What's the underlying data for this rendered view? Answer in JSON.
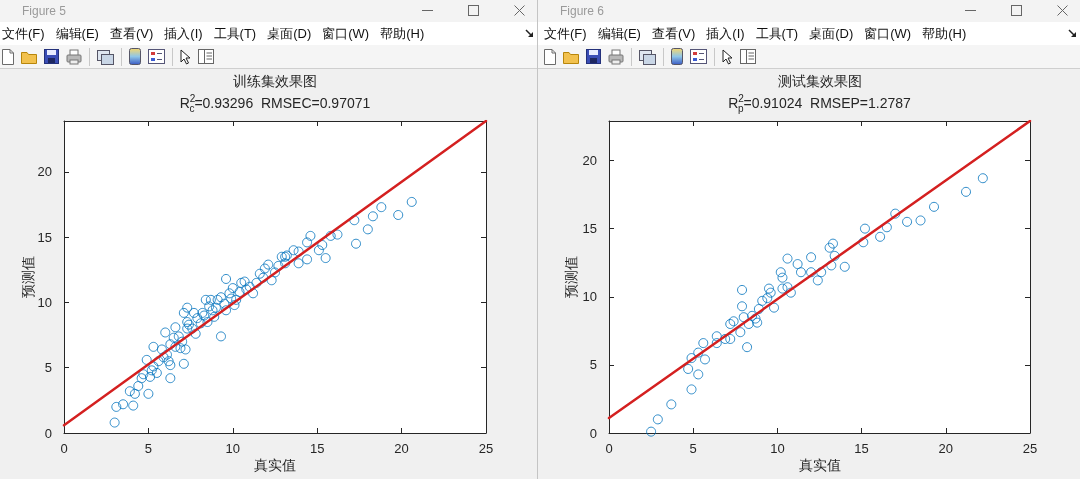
{
  "chart_data": [
    {
      "type": "scatter",
      "title": "训练集效果图",
      "subtitle": "R$^{2}$$_{c}$=0.93296  RMSEC=0.97071",
      "xlabel": "真实值",
      "ylabel": "预测值",
      "annotations": [
        "Figure 5",
        "文件(F)",
        "编辑(E)",
        "查看(V)",
        "插入(I)",
        "工具(T)",
        "桌面(D)",
        "窗口(W)",
        "帮助(H)"
      ],
      "xlim": [
        0,
        25
      ],
      "xticks": [
        0,
        5,
        10,
        15,
        20,
        25
      ],
      "ylim": [
        0,
        23.9
      ],
      "yticks": [
        0,
        5,
        10,
        15,
        20
      ],
      "series": [
        {
          "type": "scatter",
          "color": "#0072bd",
          "marker": "circle",
          "x": [
            3.0,
            3.1,
            3.5,
            4.1,
            3.9,
            4.2,
            4.4,
            5.0,
            4.6,
            5.1,
            6.3,
            4.9,
            5.3,
            5.3,
            5.8,
            6.3,
            7.1,
            6.0,
            6.5,
            6.9,
            7.2,
            7.3,
            7.1,
            7.3,
            7.7,
            7.8,
            8.4,
            8.2,
            8.6,
            8.5,
            9.3,
            9.1,
            9.3,
            9.6,
            9.8,
            9.6,
            10.2,
            10.5,
            10.8,
            11.2,
            11.6,
            12.1,
            12.3,
            13.1,
            13.9,
            14.4,
            14.6,
            14.4,
            15.1,
            15.3,
            15.5,
            15.8,
            16.2,
            17.2,
            17.3,
            18.0,
            18.3,
            18.8,
            19.8,
            20.6,
            13.6,
            13.2,
            13.9,
            13.1,
            5.5,
            5.6,
            5.9,
            6.1,
            6.3,
            6.6,
            6.2,
            6.8,
            7.0,
            6.6,
            7.4,
            7.6,
            7.9,
            8.1,
            8.3,
            8.8,
            8.9,
            9.0,
            9.5,
            9.9,
            10.0,
            10.4,
            10.7,
            11.0,
            11.4,
            11.8,
            12.5,
            12.7,
            4.7,
            5.2,
            7.3,
            8.7,
            10.1,
            11.9,
            12.9
          ],
          "values": [
            0.8,
            2.0,
            2.2,
            2.1,
            3.2,
            3.0,
            3.6,
            3.0,
            4.2,
            4.3,
            4.2,
            5.6,
            5.1,
            6.6,
            6.4,
            5.2,
            5.3,
            7.7,
            7.3,
            6.5,
            6.4,
            8.0,
            9.2,
            9.6,
            9.2,
            7.6,
            10.2,
            9.2,
            9.7,
            8.5,
            7.4,
            10.2,
            10.4,
            11.8,
            10.7,
            9.4,
            10.2,
            11.5,
            11.0,
            10.7,
            12.2,
            12.9,
            11.7,
            13.5,
            13.0,
            13.3,
            15.1,
            14.6,
            14.0,
            14.4,
            13.4,
            15.1,
            15.2,
            16.3,
            14.5,
            15.6,
            16.6,
            17.3,
            16.7,
            17.7,
            14.0,
            13.6,
            13.9,
            13.0,
            4.6,
            5.5,
            5.8,
            6.0,
            6.8,
            6.6,
            5.5,
            7.4,
            7.0,
            8.1,
            8.3,
            8.0,
            8.8,
            8.4,
            9.0,
            9.4,
            8.9,
            9.6,
            9.9,
            10.3,
            11.1,
            10.8,
            11.6,
            11.2,
            11.5,
            11.9,
            12.3,
            12.8,
            4.5,
            4.8,
            8.5,
            10.2,
            9.8,
            12.6,
            13.5
          ]
        },
        {
          "type": "line",
          "color": "#d42020",
          "marker": "none",
          "line_style": "solid",
          "x": [
            0,
            25
          ],
          "values": [
            0.6,
            23.9
          ]
        }
      ]
    },
    {
      "type": "scatter",
      "title": "测试集效果图",
      "subtitle": "R$^{2}$$_{p}$=0.91024  RMSEP=1.2787",
      "xlabel": "真实值",
      "ylabel": "预测值",
      "annotations": [
        "Figure 6",
        "文件(F)",
        "编辑(E)",
        "查看(V)",
        "插入(I)",
        "工具(T)",
        "桌面(D)",
        "窗口(W)",
        "帮助(H)"
      ],
      "xlim": [
        0,
        25
      ],
      "xticks": [
        0,
        5,
        10,
        15,
        20,
        25
      ],
      "ylim": [
        0,
        22.9
      ],
      "yticks": [
        0,
        5,
        10,
        15,
        20
      ],
      "series": [
        {
          "type": "scatter",
          "color": "#0072bd",
          "marker": "circle",
          "x": [
            2.5,
            2.9,
            3.7,
            4.9,
            4.7,
            5.3,
            4.9,
            5.7,
            5.3,
            5.6,
            6.4,
            6.4,
            6.9,
            7.2,
            7.8,
            8.2,
            7.2,
            7.4,
            7.9,
            7.9,
            8.0,
            8.3,
            8.5,
            8.8,
            8.7,
            8.9,
            9.1,
            9.4,
            9.5,
            9.6,
            9.8,
            10.2,
            10.3,
            10.3,
            10.6,
            10.6,
            10.8,
            11.2,
            11.4,
            12.0,
            12.0,
            12.4,
            12.6,
            13.1,
            13.3,
            13.4,
            13.2,
            14.0,
            15.2,
            15.1,
            16.1,
            16.5,
            17.0,
            17.7,
            18.5,
            19.3,
            21.2,
            22.2
          ],
          "values": [
            0.1,
            1.0,
            2.1,
            3.2,
            4.7,
            4.3,
            5.5,
            5.4,
            5.9,
            6.6,
            7.1,
            6.6,
            6.9,
            6.9,
            7.4,
            6.3,
            8.0,
            8.2,
            9.3,
            10.5,
            8.5,
            8.0,
            8.6,
            8.1,
            8.4,
            9.1,
            9.7,
            9.9,
            10.6,
            10.3,
            9.2,
            11.8,
            11.4,
            10.6,
            12.8,
            10.7,
            10.3,
            12.4,
            11.8,
            12.9,
            11.8,
            11.2,
            11.8,
            13.6,
            13.9,
            13.0,
            12.3,
            12.2,
            15.0,
            14.0,
            14.4,
            15.1,
            16.1,
            15.5,
            15.6,
            16.6,
            17.7,
            18.7
          ]
        },
        {
          "type": "line",
          "color": "#d42020",
          "marker": "none",
          "line_style": "solid",
          "x": [
            0,
            25
          ],
          "values": [
            1.1,
            22.9
          ]
        }
      ]
    }
  ]
}
